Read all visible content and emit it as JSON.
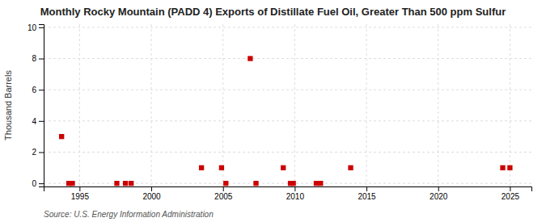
{
  "chart_data": {
    "type": "scatter",
    "title": "Monthly Rocky Mountain (PADD 4) Exports of Distillate Fuel Oil, Greater Than 500 ppm Sulfur",
    "ylabel": "Thousand Barrels",
    "source": "Source: U.S. Energy Information Administration",
    "x": [
      1993.75,
      1994.25,
      1994.5,
      1997.6,
      1998.2,
      1998.6,
      2003.5,
      2004.9,
      2005.2,
      2006.9,
      2007.3,
      2009.2,
      2009.7,
      2009.9,
      2011.5,
      2011.8,
      2013.9,
      2024.5,
      2025.0
    ],
    "values": [
      3,
      0,
      0,
      0,
      0,
      0,
      1,
      1,
      0,
      8,
      0,
      1,
      0,
      0,
      0,
      0,
      1,
      1,
      1
    ],
    "color": "#cc0000",
    "marker": "square",
    "xlim": [
      1992.5,
      2026.5
    ],
    "ylim": [
      -0.2,
      10.2
    ],
    "xticks": [
      1995,
      2000,
      2005,
      2010,
      2015,
      2020,
      2025
    ],
    "yticks": [
      0,
      2,
      4,
      6,
      8,
      10
    ],
    "grid": true
  }
}
